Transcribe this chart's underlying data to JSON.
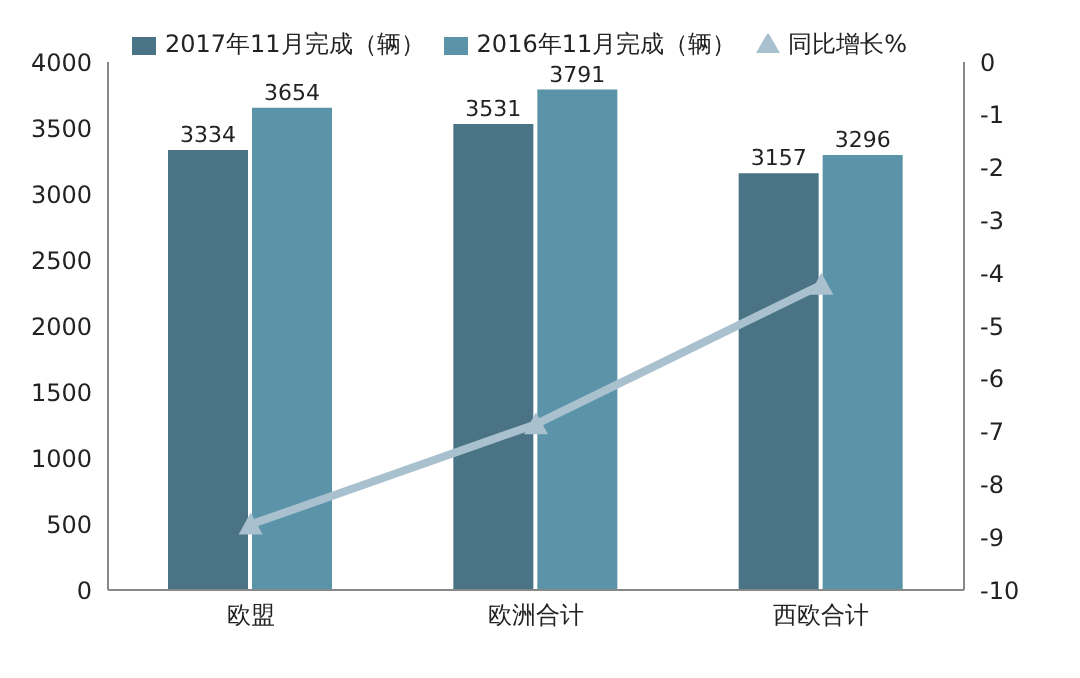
{
  "chart_data": {
    "type": "bar",
    "categories": [
      "欧盟",
      "欧洲合计",
      "西欧合计"
    ],
    "series": [
      {
        "name": "2017年11月完成（辆）",
        "color": "#4a7385",
        "values": [
          3334,
          3531,
          3157
        ],
        "value_labels": [
          "3334",
          "3531",
          "3157"
        ]
      },
      {
        "name": "2016年11月完成（辆）",
        "color": "#5b93a8",
        "values": [
          3654,
          3791,
          3296
        ],
        "value_labels": [
          "3654",
          "3791",
          "3296"
        ]
      },
      {
        "name": "同比增长%",
        "type": "line",
        "axis": "y2",
        "color": "#a9c1cf",
        "values": [
          -8.76,
          -6.86,
          -4.22
        ],
        "marker": "triangle"
      }
    ],
    "ylim": [
      0,
      4000
    ],
    "yticks": [
      0,
      500,
      1000,
      1500,
      2000,
      2500,
      3000,
      3500,
      4000
    ],
    "y2lim": [
      -10,
      0
    ],
    "y2ticks": [
      -10,
      -9,
      -8,
      -7,
      -6,
      -5,
      -4,
      -3,
      -2,
      -1,
      0
    ],
    "grid": false,
    "legend": "top"
  }
}
